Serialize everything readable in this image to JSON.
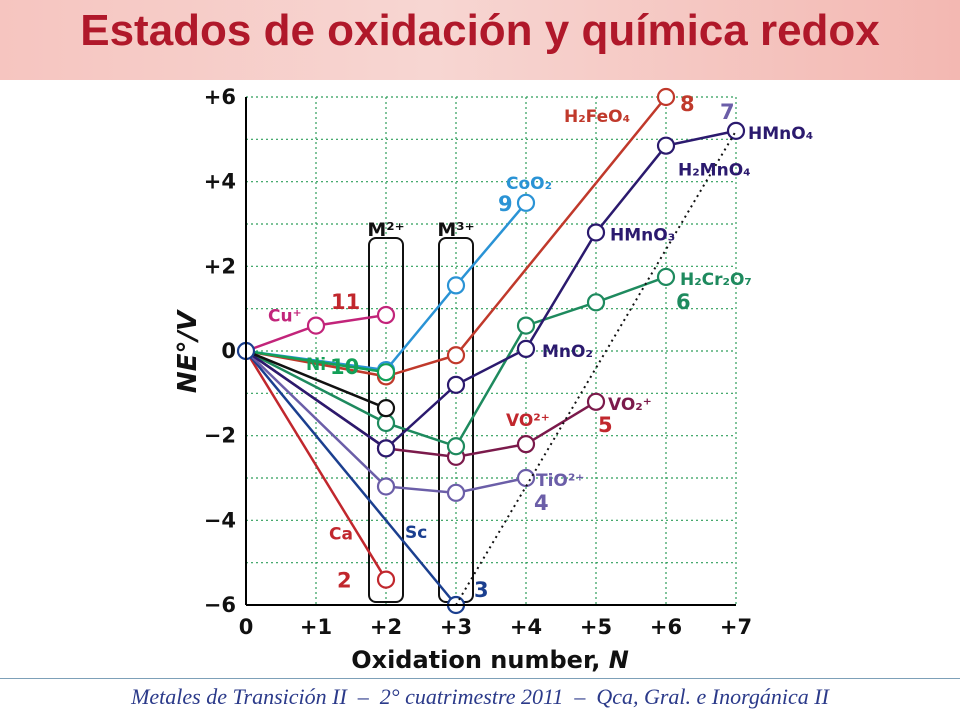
{
  "header": {
    "title": "Estados de oxidación y química redox"
  },
  "footer": {
    "text": "Metales de Transición II  –  2° cuatrimestre 2011  –  Qca, Gral. e Inorgánica II"
  },
  "chart_data": {
    "type": "line",
    "xlabel": "Oxidation number,",
    "xlabel_var": "N",
    "ylabel": "NE°/V",
    "xlim": [
      0,
      7
    ],
    "ylim": [
      -6,
      6
    ],
    "x_ticks": [
      "0",
      "+1",
      "+2",
      "+3",
      "+4",
      "+5",
      "+6",
      "+7"
    ],
    "y_ticks": [
      "+6",
      "+4",
      "+2",
      "0",
      "−2",
      "−4",
      "−6"
    ],
    "grid": true,
    "boxes": [
      {
        "label": "M²⁺",
        "x": 2
      },
      {
        "label": "M³⁺",
        "x": 3
      }
    ],
    "series": [
      {
        "name": "Ca",
        "number": "2",
        "color": "#c1272d",
        "points": [
          [
            0,
            0
          ],
          [
            2,
            -5.4
          ]
        ]
      },
      {
        "name": "Sc",
        "number": "3",
        "color": "#1b3f8f",
        "points": [
          [
            0,
            0
          ],
          [
            3,
            -6
          ]
        ]
      },
      {
        "name": "TiO²⁺",
        "number": "4",
        "color": "#6b5ea8",
        "points": [
          [
            0,
            0
          ],
          [
            2,
            -3.2
          ],
          [
            3,
            -3.35
          ],
          [
            4,
            -3.0
          ]
        ]
      },
      {
        "name": "VO²⁺",
        "name2": "VO₂⁺",
        "number": "5",
        "color": "#7b1a4b",
        "points": [
          [
            0,
            0
          ],
          [
            2,
            -2.3
          ],
          [
            3,
            -2.5
          ],
          [
            4,
            -2.2
          ],
          [
            5,
            -1.2
          ]
        ]
      },
      {
        "name": "H₂Cr₂O₇",
        "number": "6",
        "color": "#1e8a5e",
        "points": [
          [
            0,
            0
          ],
          [
            2,
            -1.7
          ],
          [
            3,
            -2.25
          ],
          [
            4,
            0.6
          ],
          [
            5,
            1.15
          ],
          [
            6,
            1.75
          ]
        ]
      },
      {
        "name": "MnO₂",
        "name2": "HMnO₃",
        "name3": "H₂MnO₄",
        "name4": "HMnO₄",
        "number": "7",
        "color": "#2b1a6e",
        "points": [
          [
            0,
            0
          ],
          [
            2,
            -2.3
          ],
          [
            3,
            -0.8
          ],
          [
            4,
            0.05
          ],
          [
            5,
            2.8
          ],
          [
            6,
            4.85
          ],
          [
            7,
            5.2
          ]
        ]
      },
      {
        "name": "H₂FeO₄",
        "number": "8",
        "color": "#c0392b",
        "points": [
          [
            0,
            0
          ],
          [
            2,
            -0.6
          ],
          [
            3,
            -0.1
          ],
          [
            6,
            6.0
          ]
        ]
      },
      {
        "name": "CoO₂",
        "number": "9",
        "color": "#2a93d5",
        "points": [
          [
            0,
            0
          ],
          [
            2,
            -0.45
          ],
          [
            3,
            1.55
          ],
          [
            4,
            3.5
          ]
        ]
      },
      {
        "name": "Ni",
        "number": "10",
        "color": "#13a058",
        "points": [
          [
            0,
            0
          ],
          [
            2,
            -0.5
          ]
        ]
      },
      {
        "name": "Cu⁺",
        "number": "11",
        "color": "#c2247a",
        "points": [
          [
            0,
            0
          ],
          [
            1,
            0.6
          ],
          [
            2,
            0.85
          ]
        ]
      },
      {
        "name": "",
        "number": "",
        "color": "#111111",
        "points": [
          [
            0,
            0
          ],
          [
            2,
            -1.35
          ]
        ]
      },
      {
        "name": "",
        "number": "",
        "color": "#111111",
        "dashed": true,
        "points": [
          [
            3,
            -6
          ],
          [
            7,
            5.2
          ]
        ]
      }
    ]
  }
}
